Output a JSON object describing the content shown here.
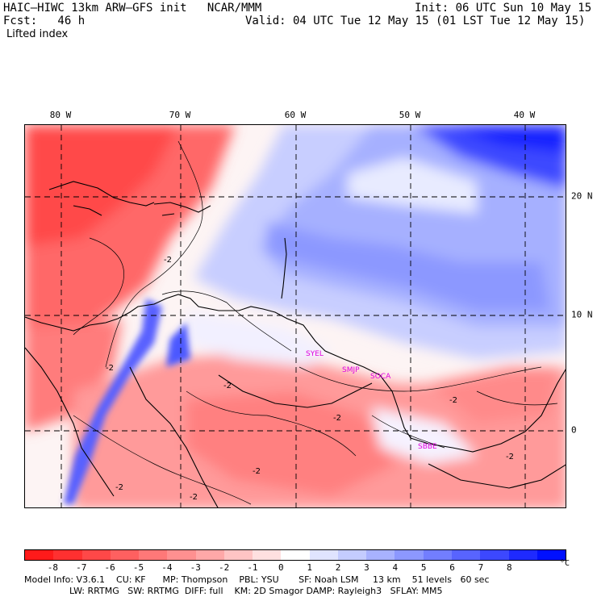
{
  "header": {
    "model_title": "HAIC—HIWC 13km ARW—GFS init   NCAR/MMM",
    "init_time": "Init: 06 UTC Sun 10 May 15",
    "forecast": "Fcst:   46 h",
    "valid_time": "Valid: 04 UTC Tue 12 May 15 (01 LST Tue 12 May 15)",
    "field_name": "Lifted index"
  },
  "map": {
    "longitude_labels": [
      "80 W",
      "70 W",
      "60 W",
      "50 W",
      "40 W"
    ],
    "latitude_labels": [
      "20 N",
      "10 N",
      "0"
    ],
    "places": [
      "SYEL",
      "SMJP",
      "SOCA",
      "SBBE"
    ],
    "contour_labels": [
      "-2",
      "-2",
      "-2",
      "-2",
      "-2",
      "-2",
      "-2",
      "-2",
      "-2"
    ]
  },
  "colorbar": {
    "ticks": [
      "-8",
      "-7",
      "-6",
      "-5",
      "-4",
      "-3",
      "-2",
      "-1",
      "0",
      "1",
      "2",
      "3",
      "4",
      "5",
      "6",
      "7",
      "8"
    ],
    "unit": "°C",
    "colors": [
      "#ff1a1a",
      "#ff3030",
      "#ff4848",
      "#ff6060",
      "#ff7878",
      "#ff9090",
      "#ffa8a8",
      "#ffc4c4",
      "#ffe0e0",
      "#ffffff",
      "#e0e4ff",
      "#c4ccff",
      "#a8b2ff",
      "#8c98ff",
      "#727eff",
      "#5864ff",
      "#3c48ff",
      "#1e2aff",
      "#0010ff"
    ]
  },
  "footer": {
    "line1": "Model Info: V3.6.1    CU: KF      MP: Thompson    PBL: YSU       SF: Noah LSM     13 km    51 levels   60 sec",
    "line2": "                LW: RRTMG   SW: RRTMG  DIFF: full    KM: 2D Smagor DAMP: Rayleigh3   SFLAY: MM5"
  }
}
